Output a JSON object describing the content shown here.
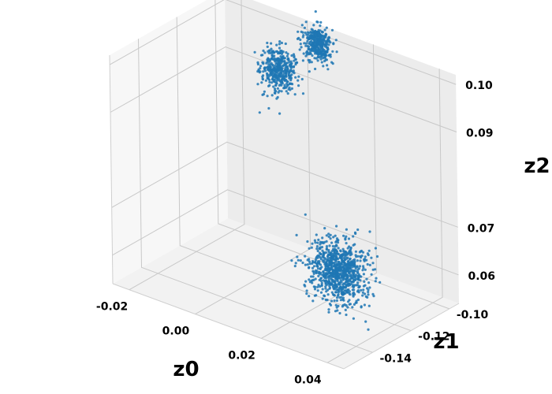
{
  "chart_data": {
    "type": "scatter",
    "projection": "3d",
    "title": "",
    "xlabel": "z0",
    "ylabel": "z1",
    "zlabel": "z2",
    "xlim": [
      -0.025,
      0.045
    ],
    "ylim": [
      -0.155,
      -0.095
    ],
    "zlim": [
      0.054,
      0.102
    ],
    "xticks": [
      "-0.02",
      "0.00",
      "0.02",
      "0.04"
    ],
    "yticks": [
      "-0.10",
      "-0.12",
      "-0.14"
    ],
    "zticks": [
      "0.10",
      "0.09",
      "0.07",
      "0.06"
    ],
    "grid": true,
    "marker_color": "#1f77b4",
    "clusters": [
      {
        "center": {
          "z0": 0.0,
          "z1": -0.11,
          "z2": 0.095
        },
        "spread": {
          "z0": 0.0025,
          "z1": 0.0022,
          "z2": 0.0022
        }
      },
      {
        "center": {
          "z0": 0.005,
          "z1": -0.098,
          "z2": 0.099
        },
        "spread": {
          "z0": 0.002,
          "z1": 0.0018,
          "z2": 0.0016
        }
      },
      {
        "center": {
          "z0": 0.028,
          "z1": -0.128,
          "z2": 0.064
        },
        "spread": {
          "z0": 0.004,
          "z1": 0.0035,
          "z2": 0.003
        }
      }
    ]
  }
}
